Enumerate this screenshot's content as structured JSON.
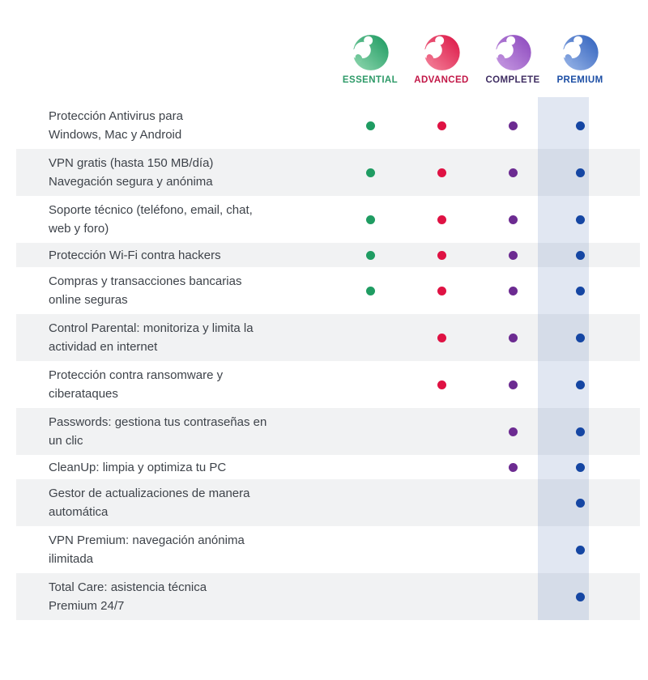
{
  "plans": [
    {
      "id": "essential",
      "label": "ESSENTIAL",
      "label_color": "#2E9A68",
      "dot_color": "#1F9C62",
      "icon": "panda-logo",
      "icon_gradient": {
        "light": "#8FD7AF",
        "dark": "#1F9B62"
      },
      "highlighted": false
    },
    {
      "id": "advanced",
      "label": "ADVANCED",
      "label_color": "#C21747",
      "dot_color": "#DF1243",
      "icon": "panda-logo",
      "icon_gradient": {
        "light": "#F4849C",
        "dark": "#DC1847"
      },
      "highlighted": false
    },
    {
      "id": "complete",
      "label": "COMPLETE",
      "label_color": "#3F2D62",
      "dot_color": "#6C2B91",
      "icon": "panda-logo",
      "icon_gradient": {
        "light": "#C79BE2",
        "dark": "#8D49BE"
      },
      "highlighted": false
    },
    {
      "id": "premium",
      "label": "PREMIUM",
      "label_color": "#1D4FA5",
      "dot_color": "#1546A3",
      "icon": "panda-logo",
      "icon_gradient": {
        "light": "#9AB6E8",
        "dark": "#3263BE"
      },
      "highlighted": true
    }
  ],
  "premium_highlight_color": "rgba(66, 106, 177, 0.16)",
  "features": [
    {
      "lines": [
        "Protección Antivirus para",
        "Windows, Mac y Android"
      ],
      "included": [
        true,
        true,
        true,
        true
      ]
    },
    {
      "lines": [
        "VPN gratis (hasta 150 MB/día)",
        "Navegación segura y anónima"
      ],
      "included": [
        true,
        true,
        true,
        true
      ]
    },
    {
      "lines": [
        "Soporte técnico (teléfono, email, chat,",
        "web y foro)"
      ],
      "included": [
        true,
        true,
        true,
        true
      ]
    },
    {
      "lines": [
        "Protección Wi-Fi contra hackers"
      ],
      "included": [
        true,
        true,
        true,
        true
      ]
    },
    {
      "lines": [
        "Compras y transacciones bancarias",
        "online seguras"
      ],
      "included": [
        true,
        true,
        true,
        true
      ]
    },
    {
      "lines": [
        "Control Parental: monitoriza y limita la",
        "actividad en internet"
      ],
      "included": [
        false,
        true,
        true,
        true
      ]
    },
    {
      "lines": [
        "Protección contra ransomware y",
        "ciberataques"
      ],
      "included": [
        false,
        true,
        true,
        true
      ]
    },
    {
      "lines": [
        "Passwords: gestiona tus contraseñas en",
        "un clic"
      ],
      "included": [
        false,
        false,
        true,
        true
      ]
    },
    {
      "lines": [
        "CleanUp: limpia y optimiza tu PC"
      ],
      "included": [
        false,
        false,
        true,
        true
      ]
    },
    {
      "lines": [
        "Gestor de actualizaciones de manera",
        "automática"
      ],
      "included": [
        false,
        false,
        false,
        true
      ]
    },
    {
      "lines": [
        "VPN Premium: navegación anónima",
        "ilimitada"
      ],
      "included": [
        false,
        false,
        false,
        true
      ]
    },
    {
      "lines": [
        "Total Care: asistencia técnica",
        "Premium 24/7"
      ],
      "included": [
        false,
        false,
        false,
        true
      ]
    }
  ]
}
